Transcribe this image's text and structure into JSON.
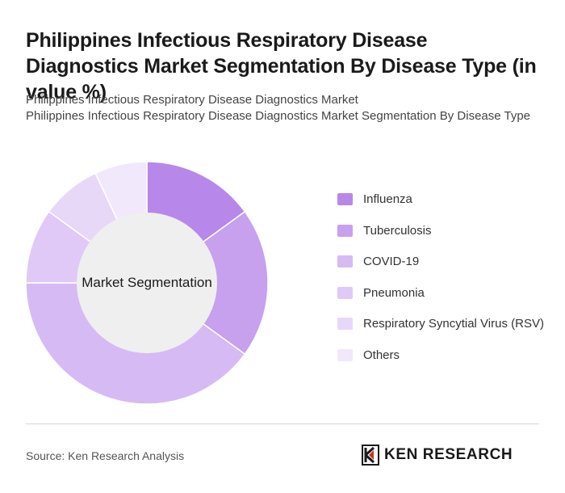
{
  "title": "Philippines Infectious Respiratory Disease Diagnostics Market Segmentation By Disease Type (in value %)",
  "subtitle_lines": [
    "Philippines Infectious Respiratory Disease Diagnostics Market",
    "Philippines Infectious Respiratory Disease Diagnostics Market Segmentation By Disease Type"
  ],
  "chart_data": {
    "type": "pie",
    "variant": "donut",
    "center_label": "Market Segmentation",
    "categories": [
      "Influenza",
      "Tuberculosis",
      "COVID-19",
      "Pneumonia",
      "Respiratory Syncytial Virus (RSV)",
      "Others"
    ],
    "values": [
      15,
      20,
      40,
      10,
      8,
      7
    ],
    "colors": [
      "#b788ea",
      "#c7a0ee",
      "#d6baf4",
      "#e0c9f6",
      "#e8d8f8",
      "#f1e8fb"
    ],
    "legend_position": "right"
  },
  "footer": {
    "source": "Source: Ken Research Analysis",
    "logo_text": "KEN RESEARCH",
    "logo_name": "ken-research-logo"
  }
}
